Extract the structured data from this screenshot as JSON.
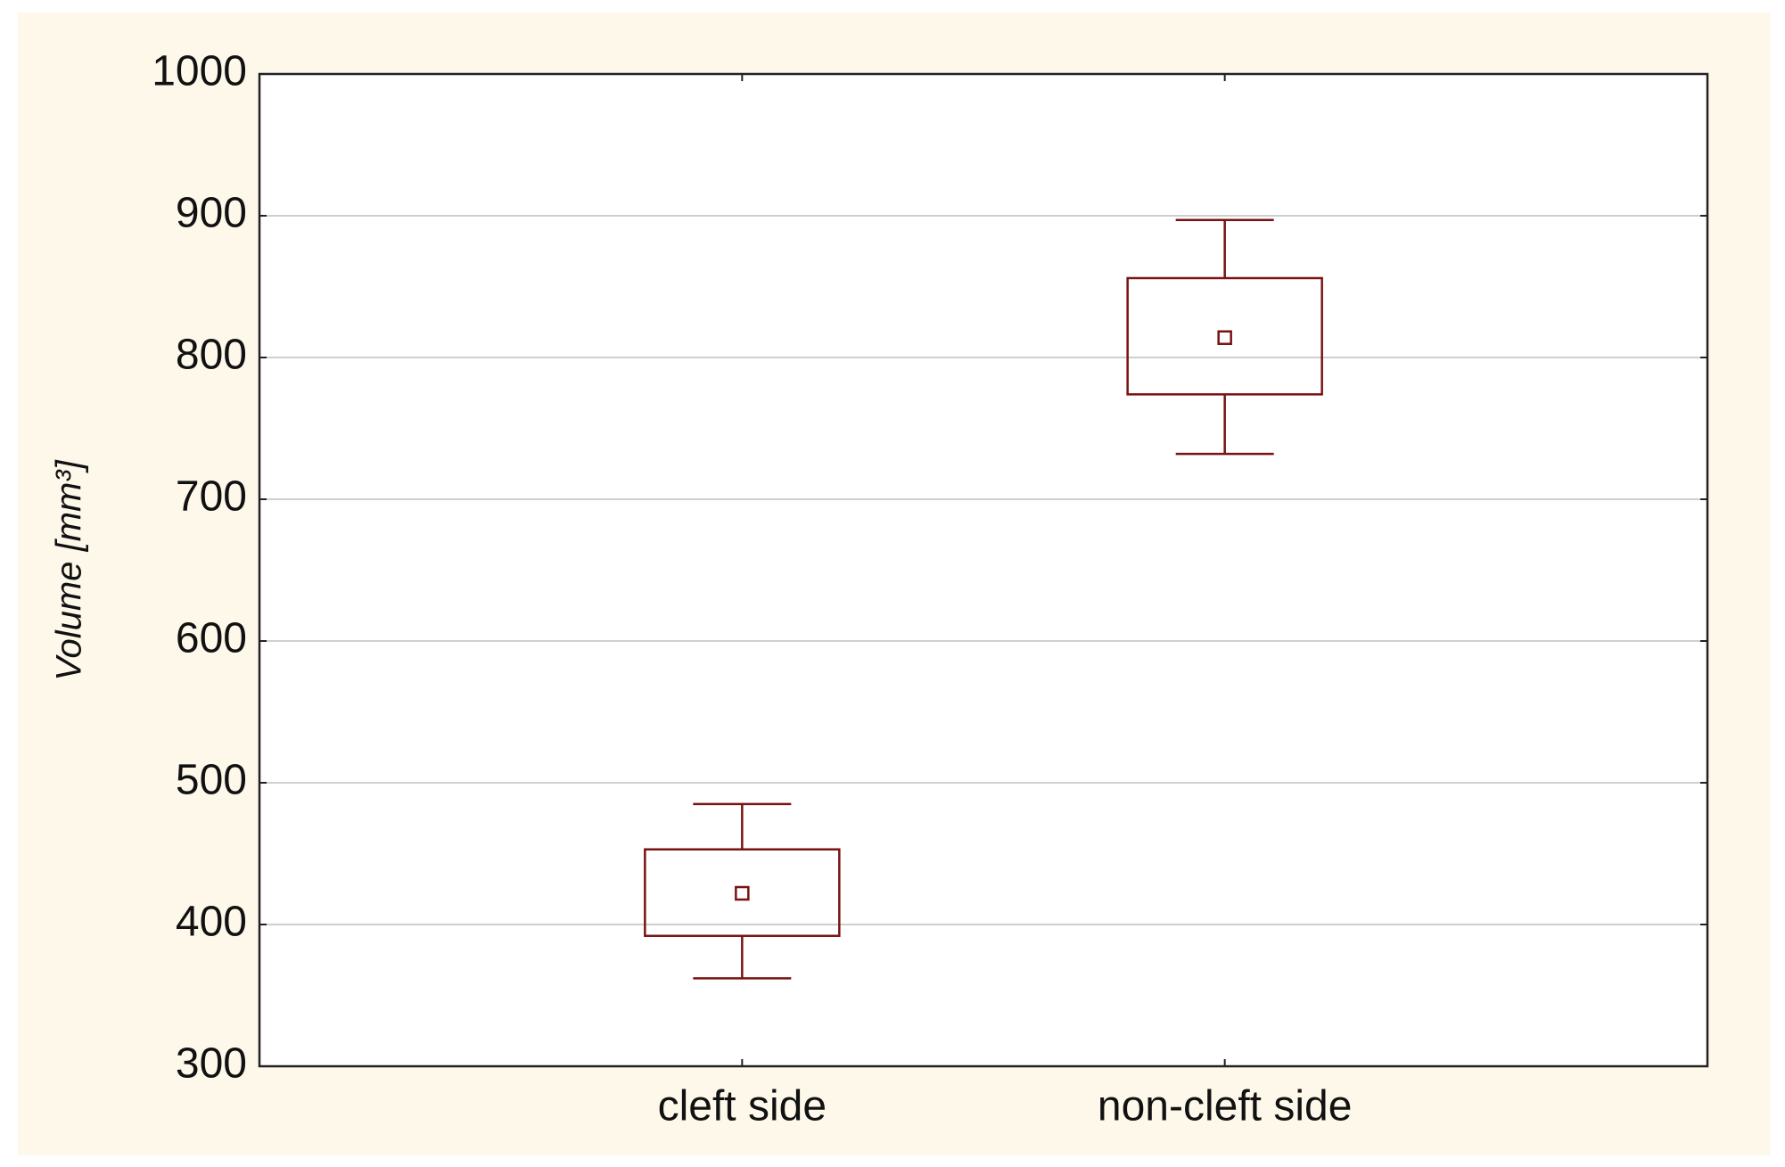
{
  "chart_data": {
    "type": "box",
    "ylabel": "Volume [mm³]",
    "categories": [
      "cleft side",
      "non-cleft side"
    ],
    "color": "#7a1212",
    "boxes": [
      {
        "whisker_low": 362,
        "box_low": 392,
        "mean": 422,
        "box_high": 453,
        "whisker_high": 485
      },
      {
        "whisker_low": 732,
        "box_low": 774,
        "mean": 814,
        "box_high": 856,
        "whisker_high": 897
      }
    ],
    "ylim": [
      300,
      1000
    ],
    "yticks": [
      300,
      400,
      500,
      600,
      700,
      800,
      900,
      1000
    ],
    "grid": true
  }
}
